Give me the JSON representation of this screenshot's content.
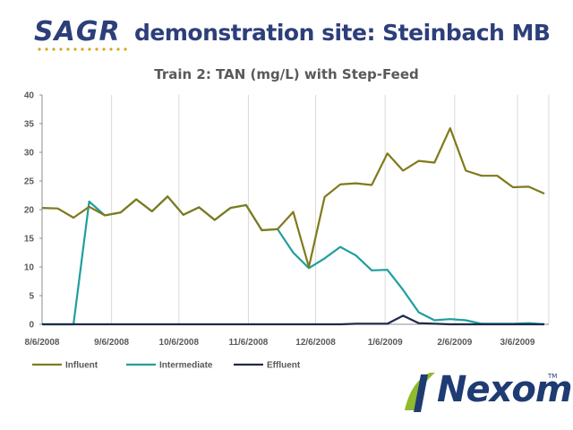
{
  "header": {
    "logo_text": "SAGR",
    "title": "demonstration site: Steinbach MB"
  },
  "brand": {
    "name": "Nexom",
    "tm": "TM"
  },
  "colors": {
    "influent": "#7f7a1a",
    "intermediate": "#1f9e9e",
    "effluent": "#1f2a4a",
    "header": "#2d3f7a",
    "grid": "#d9d9d9"
  },
  "chart_data": {
    "type": "line",
    "title": "Train 2:  TAN (mg/L) with Step-Feed",
    "xlabel": "",
    "ylabel": "",
    "ylim": [
      0,
      40
    ],
    "yticks": [
      "0",
      "5",
      "10",
      "15",
      "20",
      "25",
      "30",
      "35",
      "40"
    ],
    "xticks": [
      "8/6/2008",
      "9/6/2008",
      "10/6/2008",
      "11/6/2008",
      "12/6/2008",
      "1/6/2009",
      "2/6/2009",
      "3/6/2009"
    ],
    "xlim": [
      "2008-08-06",
      "2009-03-20"
    ],
    "grid": "vertical",
    "legend": "bottom-left",
    "series": [
      {
        "name": "Influent",
        "points": [
          [
            "2008-08-06",
            20.3
          ],
          [
            "2008-08-13",
            20.2
          ],
          [
            "2008-08-20",
            18.6
          ],
          [
            "2008-08-27",
            20.5
          ],
          [
            "2008-09-03",
            19.0
          ],
          [
            "2008-09-10",
            19.5
          ],
          [
            "2008-09-17",
            21.8
          ],
          [
            "2008-09-24",
            19.7
          ],
          [
            "2008-10-01",
            22.3
          ],
          [
            "2008-10-08",
            19.1
          ],
          [
            "2008-10-15",
            20.4
          ],
          [
            "2008-10-22",
            18.2
          ],
          [
            "2008-10-29",
            20.3
          ],
          [
            "2008-11-05",
            20.8
          ],
          [
            "2008-11-12",
            16.4
          ],
          [
            "2008-11-19",
            16.6
          ],
          [
            "2008-11-26",
            19.6
          ],
          [
            "2008-12-03",
            10.0
          ],
          [
            "2008-12-10",
            22.2
          ],
          [
            "2008-12-17",
            24.4
          ],
          [
            "2008-12-24",
            24.6
          ],
          [
            "2008-12-31",
            24.3
          ],
          [
            "2009-01-07",
            29.8
          ],
          [
            "2009-01-14",
            26.8
          ],
          [
            "2009-01-21",
            28.5
          ],
          [
            "2009-01-28",
            28.2
          ],
          [
            "2009-02-04",
            34.2
          ],
          [
            "2009-02-11",
            26.8
          ],
          [
            "2009-02-18",
            25.9
          ],
          [
            "2009-02-25",
            25.9
          ],
          [
            "2009-03-04",
            23.9
          ],
          [
            "2009-03-11",
            24.0
          ],
          [
            "2009-03-18",
            22.8
          ]
        ]
      },
      {
        "name": "Intermediate",
        "points": [
          [
            "2008-08-06",
            0
          ],
          [
            "2008-08-13",
            0
          ],
          [
            "2008-08-20",
            0
          ],
          [
            "2008-08-27",
            21.4
          ],
          [
            "2008-09-03",
            19.0
          ],
          [
            "2008-09-10",
            19.5
          ],
          [
            "2008-09-17",
            21.8
          ],
          [
            "2008-09-24",
            19.7
          ],
          [
            "2008-10-01",
            22.3
          ],
          [
            "2008-10-08",
            19.1
          ],
          [
            "2008-10-15",
            20.4
          ],
          [
            "2008-10-22",
            18.2
          ],
          [
            "2008-10-29",
            20.3
          ],
          [
            "2008-11-05",
            20.8
          ],
          [
            "2008-11-12",
            16.4
          ],
          [
            "2008-11-19",
            16.6
          ],
          [
            "2008-11-26",
            12.5
          ],
          [
            "2008-12-03",
            9.8
          ],
          [
            "2008-12-10",
            11.5
          ],
          [
            "2008-12-17",
            13.5
          ],
          [
            "2008-12-24",
            12.0
          ],
          [
            "2008-12-31",
            9.4
          ],
          [
            "2009-01-07",
            9.5
          ],
          [
            "2009-01-14",
            6.0
          ],
          [
            "2009-01-21",
            2.1
          ],
          [
            "2009-01-28",
            0.7
          ],
          [
            "2009-02-04",
            0.9
          ],
          [
            "2009-02-11",
            0.7
          ],
          [
            "2009-02-18",
            0.1
          ],
          [
            "2009-02-25",
            0.1
          ],
          [
            "2009-03-04",
            0.1
          ],
          [
            "2009-03-11",
            0.2
          ],
          [
            "2009-03-18",
            0.0
          ]
        ]
      },
      {
        "name": "Effluent",
        "points": [
          [
            "2008-08-06",
            0
          ],
          [
            "2008-08-13",
            0
          ],
          [
            "2008-08-20",
            0
          ],
          [
            "2008-08-27",
            0
          ],
          [
            "2008-09-03",
            0
          ],
          [
            "2008-09-10",
            0
          ],
          [
            "2008-09-17",
            0
          ],
          [
            "2008-09-24",
            0
          ],
          [
            "2008-10-01",
            0
          ],
          [
            "2008-10-08",
            0
          ],
          [
            "2008-10-15",
            0
          ],
          [
            "2008-10-22",
            0
          ],
          [
            "2008-10-29",
            0
          ],
          [
            "2008-11-05",
            0
          ],
          [
            "2008-11-12",
            0
          ],
          [
            "2008-11-19",
            0
          ],
          [
            "2008-11-26",
            0
          ],
          [
            "2008-12-03",
            0
          ],
          [
            "2008-12-10",
            0
          ],
          [
            "2008-12-17",
            0
          ],
          [
            "2008-12-24",
            0.1
          ],
          [
            "2008-12-31",
            0.1
          ],
          [
            "2009-01-07",
            0.1
          ],
          [
            "2009-01-14",
            1.5
          ],
          [
            "2009-01-21",
            0.2
          ],
          [
            "2009-01-28",
            0.1
          ],
          [
            "2009-02-04",
            0
          ],
          [
            "2009-02-11",
            0
          ],
          [
            "2009-02-18",
            0
          ],
          [
            "2009-02-25",
            0
          ],
          [
            "2009-03-04",
            0
          ],
          [
            "2009-03-11",
            0
          ],
          [
            "2009-03-18",
            0
          ]
        ]
      }
    ]
  }
}
